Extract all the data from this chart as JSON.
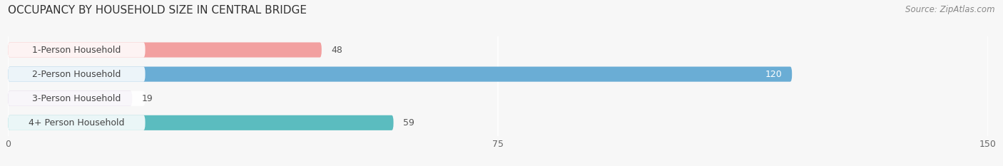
{
  "title": "OCCUPANCY BY HOUSEHOLD SIZE IN CENTRAL BRIDGE",
  "source": "Source: ZipAtlas.com",
  "categories": [
    "1-Person Household",
    "2-Person Household",
    "3-Person Household",
    "4+ Person Household"
  ],
  "values": [
    48,
    120,
    19,
    59
  ],
  "bar_colors": [
    "#f2a0a0",
    "#6aadd5",
    "#c9b8d8",
    "#5bbcbf"
  ],
  "xlim": [
    0,
    150
  ],
  "xticks": [
    0,
    75,
    150
  ],
  "background_color": "#f7f7f7",
  "title_fontsize": 11,
  "source_fontsize": 8.5,
  "tick_fontsize": 9,
  "bar_label_fontsize": 9,
  "category_fontsize": 9
}
